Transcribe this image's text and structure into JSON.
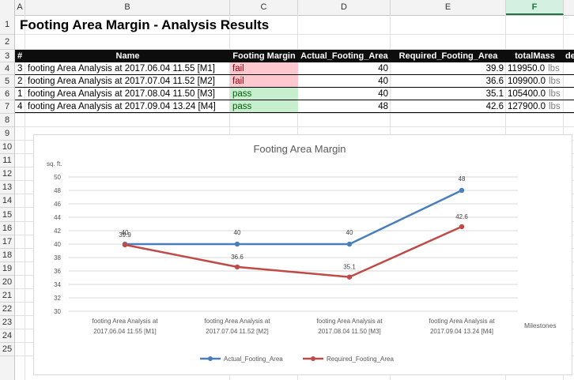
{
  "columns": [
    "A",
    "B",
    "C",
    "D",
    "E",
    "F"
  ],
  "selected_column": "F",
  "rows": [
    "1",
    "2",
    "3",
    "4",
    "5",
    "6",
    "7",
    "8",
    "9",
    "10",
    "11",
    "12",
    "13",
    "14",
    "15",
    "16",
    "17",
    "18",
    "19",
    "20",
    "21",
    "22",
    "23",
    "24",
    "25"
  ],
  "sheet_title": "Footing Area Margin - Analysis Results",
  "table": {
    "headers": [
      "#",
      "Name",
      "Footing Margin",
      "Actual_Footing_Area",
      "Required_Footing_Area",
      "totalMass",
      "de"
    ],
    "rows": [
      {
        "idx": "3",
        "name": "footing Area Analysis at 2017.06.04 11.55 [M1]",
        "margin": "fail",
        "actual": "40",
        "required": "39.9",
        "mass": "119950.0",
        "unit": "lbs"
      },
      {
        "idx": "2",
        "name": "footing Area Analysis at 2017.07.04 11.52 [M2]",
        "margin": "fail",
        "actual": "40",
        "required": "36.6",
        "mass": "109900.0",
        "unit": "lbs"
      },
      {
        "idx": "1",
        "name": "footing Area Analysis at 2017.08.04 11.50 [M3]",
        "margin": "pass",
        "actual": "40",
        "required": "35.1",
        "mass": "105400.0",
        "unit": "lbs"
      },
      {
        "idx": "4",
        "name": "footing Area Analysis at 2017.09.04 13.24 [M4]",
        "margin": "pass",
        "actual": "48",
        "required": "42.6",
        "mass": "127900.0",
        "unit": "lbs"
      }
    ]
  },
  "colors": {
    "actual": "#4a7ebb",
    "required": "#be4b48",
    "fail_bg": "#ffc7ce",
    "pass_bg": "#c6efce"
  },
  "chart_data": {
    "type": "line",
    "title": "Footing Area Margin",
    "ylabel": "sq. ft.",
    "xlabel": "Milestones",
    "ylim": [
      30,
      50
    ],
    "yticks": [
      30,
      32,
      34,
      36,
      38,
      40,
      42,
      44,
      46,
      48,
      50
    ],
    "grid": true,
    "legend": "bottom",
    "categories": [
      [
        "footing Area Analysis at",
        "2017.06.04 11.55 [M1]"
      ],
      [
        "footing Area Analysis at",
        "2017.07.04 11.52 [M2]"
      ],
      [
        "footing Area Analysis at",
        "2017.08.04 11.50 [M3]"
      ],
      [
        "footing Area Analysis at",
        "2017.09.04 13.24 [M4]"
      ]
    ],
    "series": [
      {
        "name": "Actual_Footing_Area",
        "values": [
          40,
          40,
          40,
          48
        ]
      },
      {
        "name": "Required_Footing_Area",
        "values": [
          39.9,
          36.6,
          35.1,
          42.6
        ]
      }
    ]
  }
}
